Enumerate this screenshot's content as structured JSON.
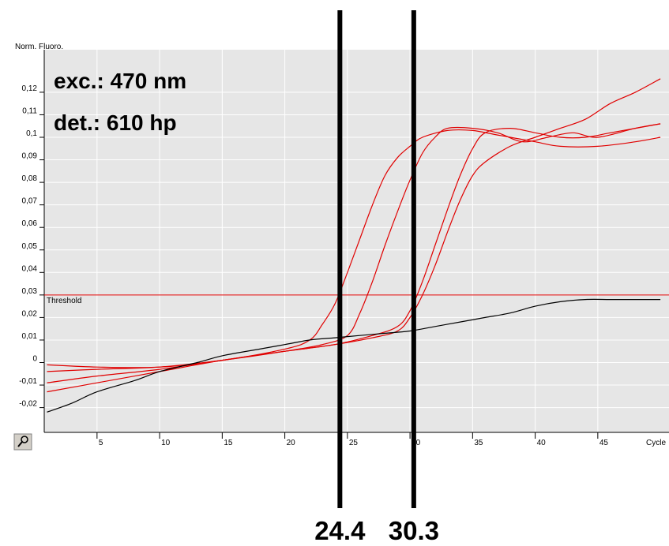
{
  "chart_data": {
    "type": "line",
    "ylabel": "Norm. Fluoro.",
    "xlabel": "Cycle",
    "xlim": [
      1,
      51
    ],
    "ylim": [
      -0.03,
      0.135
    ],
    "x_ticks": [
      5,
      10,
      15,
      20,
      25,
      30,
      35,
      40,
      45
    ],
    "y_ticks": [
      -0.02,
      -0.01,
      0,
      0.01,
      0.02,
      0.03,
      0.04,
      0.05,
      0.06,
      0.07,
      0.08,
      0.09,
      0.1,
      0.11,
      0.12
    ],
    "y_tick_labels": [
      "-0,02",
      "-0,01",
      "0",
      "0,01",
      "0,02",
      "0,03",
      "0,04",
      "0,05",
      "0,06",
      "0,07",
      "0,08",
      "0,09",
      "0,1",
      "0,11",
      "0,12"
    ],
    "annotation_lines": [
      "exc.: 470 nm",
      "det.: 610 hp"
    ],
    "threshold": {
      "label": "Threshold",
      "value": 0.03,
      "color": "#e00000"
    },
    "cycle_markers": [
      {
        "x": 24.4,
        "label": "24.4"
      },
      {
        "x": 30.3,
        "label": "30.3"
      }
    ],
    "series": [
      {
        "color": "#e00000",
        "points": [
          [
            1,
            -0.001
          ],
          [
            5,
            -0.002
          ],
          [
            10,
            -0.002
          ],
          [
            15,
            0.001
          ],
          [
            20,
            0.006
          ],
          [
            22,
            0.01
          ],
          [
            23,
            0.017
          ],
          [
            24,
            0.026
          ],
          [
            25,
            0.04
          ],
          [
            26,
            0.055
          ],
          [
            27,
            0.07
          ],
          [
            28,
            0.083
          ],
          [
            29,
            0.091
          ],
          [
            30,
            0.096
          ],
          [
            31,
            0.1
          ],
          [
            33,
            0.103
          ],
          [
            35,
            0.103
          ],
          [
            37,
            0.101
          ],
          [
            40,
            0.098
          ],
          [
            42,
            0.096
          ],
          [
            45,
            0.096
          ],
          [
            48,
            0.098
          ],
          [
            50,
            0.1
          ]
        ]
      },
      {
        "color": "#e00000",
        "points": [
          [
            1,
            -0.004
          ],
          [
            5,
            -0.003
          ],
          [
            10,
            -0.002
          ],
          [
            15,
            0.001
          ],
          [
            20,
            0.005
          ],
          [
            23,
            0.008
          ],
          [
            25,
            0.012
          ],
          [
            26,
            0.022
          ],
          [
            27,
            0.036
          ],
          [
            28,
            0.052
          ],
          [
            29,
            0.067
          ],
          [
            30,
            0.081
          ],
          [
            31,
            0.093
          ],
          [
            32,
            0.1
          ],
          [
            33,
            0.104
          ],
          [
            35,
            0.104
          ],
          [
            37,
            0.102
          ],
          [
            39,
            0.098
          ],
          [
            41,
            0.1
          ],
          [
            43,
            0.102
          ],
          [
            45,
            0.1
          ],
          [
            48,
            0.104
          ],
          [
            50,
            0.106
          ]
        ]
      },
      {
        "color": "#e00000",
        "points": [
          [
            1,
            -0.009
          ],
          [
            5,
            -0.006
          ],
          [
            10,
            -0.003
          ],
          [
            15,
            0.001
          ],
          [
            20,
            0.005
          ],
          [
            24,
            0.008
          ],
          [
            27,
            0.012
          ],
          [
            29,
            0.016
          ],
          [
            30,
            0.023
          ],
          [
            31,
            0.036
          ],
          [
            32,
            0.052
          ],
          [
            33,
            0.068
          ],
          [
            34,
            0.083
          ],
          [
            35,
            0.095
          ],
          [
            36,
            0.102
          ],
          [
            38,
            0.104
          ],
          [
            40,
            0.102
          ],
          [
            42,
            0.1
          ],
          [
            44,
            0.1
          ],
          [
            46,
            0.102
          ],
          [
            48,
            0.104
          ],
          [
            50,
            0.106
          ]
        ]
      },
      {
        "color": "#e00000",
        "points": [
          [
            1,
            -0.013
          ],
          [
            5,
            -0.009
          ],
          [
            10,
            -0.004
          ],
          [
            15,
            0.001
          ],
          [
            20,
            0.005
          ],
          [
            24,
            0.008
          ],
          [
            27,
            0.011
          ],
          [
            29,
            0.014
          ],
          [
            30,
            0.02
          ],
          [
            31,
            0.03
          ],
          [
            32,
            0.043
          ],
          [
            33,
            0.058
          ],
          [
            34,
            0.072
          ],
          [
            35,
            0.083
          ],
          [
            36,
            0.089
          ],
          [
            38,
            0.096
          ],
          [
            40,
            0.1
          ],
          [
            42,
            0.104
          ],
          [
            44,
            0.108
          ],
          [
            46,
            0.115
          ],
          [
            48,
            0.12
          ],
          [
            50,
            0.126
          ]
        ]
      },
      {
        "color": "#000000",
        "points": [
          [
            1,
            -0.022
          ],
          [
            3,
            -0.018
          ],
          [
            5,
            -0.013
          ],
          [
            8,
            -0.008
          ],
          [
            10,
            -0.004
          ],
          [
            13,
            0.0
          ],
          [
            15,
            0.003
          ],
          [
            18,
            0.006
          ],
          [
            20,
            0.008
          ],
          [
            22,
            0.01
          ],
          [
            24,
            0.011
          ],
          [
            26,
            0.012
          ],
          [
            28,
            0.013
          ],
          [
            30,
            0.014
          ],
          [
            32,
            0.016
          ],
          [
            34,
            0.018
          ],
          [
            36,
            0.02
          ],
          [
            38,
            0.022
          ],
          [
            40,
            0.025
          ],
          [
            42,
            0.027
          ],
          [
            44,
            0.028
          ],
          [
            46,
            0.028
          ],
          [
            48,
            0.028
          ],
          [
            50,
            0.028
          ]
        ]
      }
    ]
  }
}
